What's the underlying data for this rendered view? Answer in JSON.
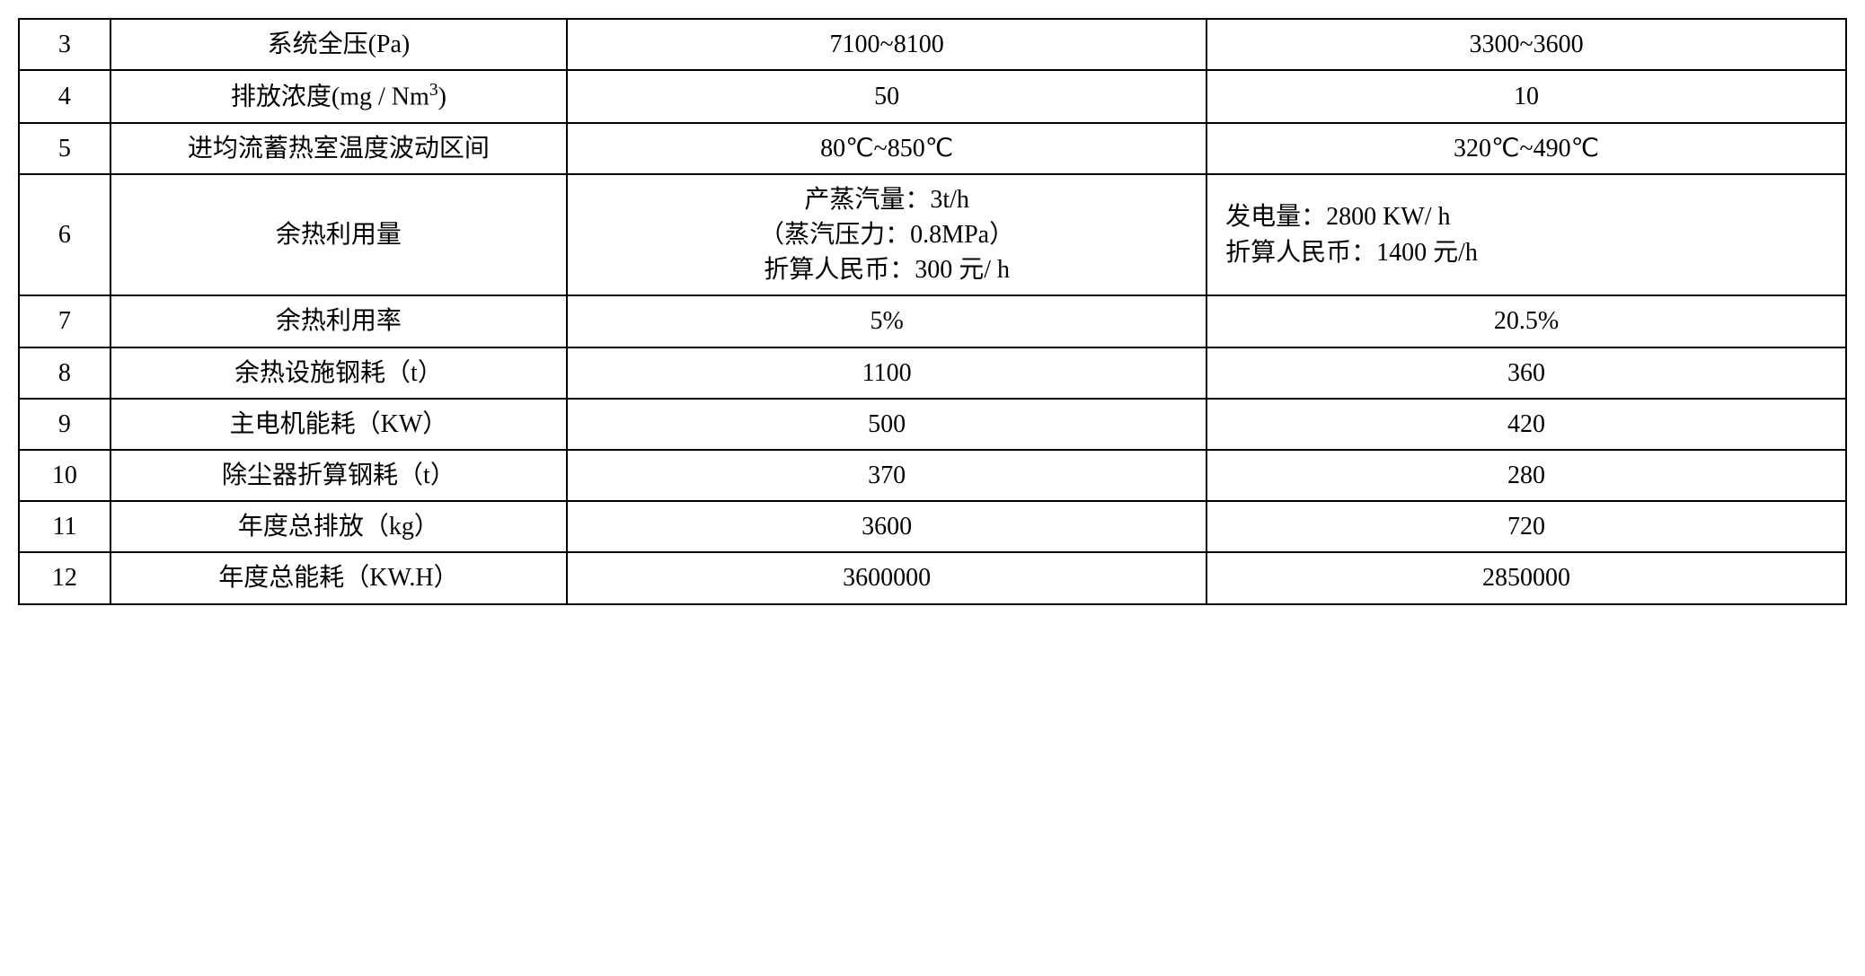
{
  "table": {
    "border_color": "#000000",
    "background_color": "#ffffff",
    "font_family": "SimSun",
    "base_font_size": 28,
    "column_widths_pct": [
      5,
      25,
      35,
      35
    ],
    "rows": [
      {
        "num": "3",
        "label": "系统全压(Pa)",
        "col_a": "7100~8100",
        "col_b": "3300~3600"
      },
      {
        "num": "4",
        "label_html": "排放浓度(mg / Nm³)",
        "label": "排放浓度(mg / Nm3)",
        "col_a": "50",
        "col_b": "10"
      },
      {
        "num": "5",
        "label": "进均流蓄热室温度波动区间",
        "col_a": "80℃~850℃",
        "col_b": "320℃~490℃"
      },
      {
        "num": "6",
        "label": "余热利用量",
        "col_a_lines": [
          "产蒸汽量：3t/h",
          "（蒸汽压力：0.8MPa）",
          "折算人民币：300 元/ h"
        ],
        "col_b_lines": [
          "发电量：2800 KW/ h",
          "折算人民币：1400 元/h"
        ]
      },
      {
        "num": "7",
        "label": "余热利用率",
        "col_a": "5%",
        "col_b": "20.5%",
        "num_align_top": true
      },
      {
        "num": "8",
        "label": "余热设施钢耗（t）",
        "col_a": "1100",
        "col_b": "360"
      },
      {
        "num": "9",
        "label": "主电机能耗（KW）",
        "col_a": "500",
        "col_b": "420"
      },
      {
        "num": "10",
        "label": "除尘器折算钢耗（t）",
        "col_a": "370",
        "col_b": "280"
      },
      {
        "num": "11",
        "label": "年度总排放（kg）",
        "col_a": "3600",
        "col_b": "720"
      },
      {
        "num": "12",
        "label": "年度总能耗（KW.H）",
        "col_a": "3600000",
        "col_b": "2850000"
      }
    ]
  }
}
